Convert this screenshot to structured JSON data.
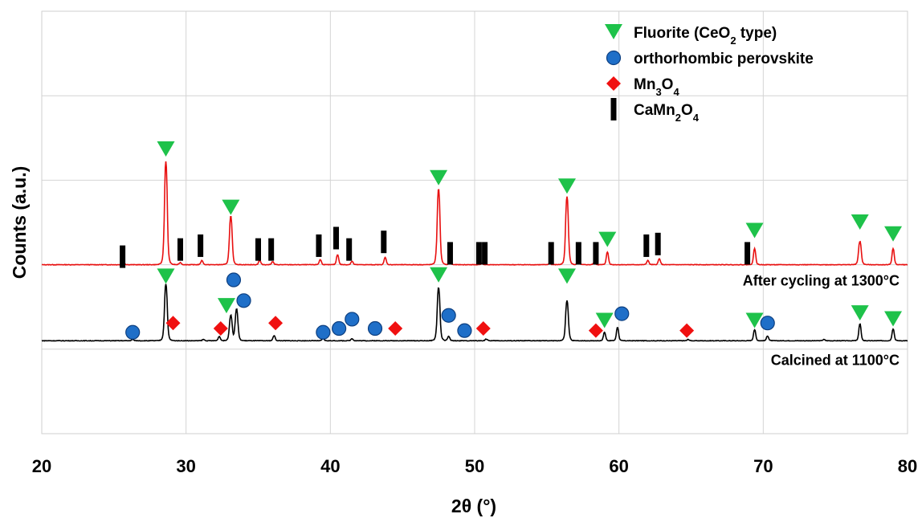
{
  "chart_data": {
    "type": "line",
    "title": "",
    "xlabel": "2θ (°)",
    "ylabel": "Counts (a.u.)",
    "xlim": [
      20,
      80
    ],
    "ylim": [
      0,
      100
    ],
    "xticks": [
      "20",
      "30",
      "40",
      "50",
      "60",
      "70",
      "80"
    ],
    "grid": true,
    "legend_position": "top-right",
    "y_tick_labels_shown": false,
    "series": [
      {
        "name": "After cycling at 1300°C",
        "color": "#e81010",
        "baseline": 40,
        "peaks": [
          {
            "x": 25.7,
            "h": 0.3
          },
          {
            "x": 28.6,
            "h": 24.5
          },
          {
            "x": 29.6,
            "h": 0.5
          },
          {
            "x": 31.1,
            "h": 1.0
          },
          {
            "x": 33.1,
            "h": 11.5
          },
          {
            "x": 35.1,
            "h": 1.0
          },
          {
            "x": 36.0,
            "h": 0.7
          },
          {
            "x": 39.3,
            "h": 1.2
          },
          {
            "x": 40.5,
            "h": 2.4
          },
          {
            "x": 41.5,
            "h": 0.8
          },
          {
            "x": 43.8,
            "h": 1.7
          },
          {
            "x": 47.5,
            "h": 18.0
          },
          {
            "x": 48.3,
            "h": 0.5
          },
          {
            "x": 50.5,
            "h": 0.3
          },
          {
            "x": 55.2,
            "h": 0.3
          },
          {
            "x": 56.4,
            "h": 16.2
          },
          {
            "x": 57.2,
            "h": 0.7
          },
          {
            "x": 58.3,
            "h": 0.5
          },
          {
            "x": 59.2,
            "h": 3.0
          },
          {
            "x": 62.0,
            "h": 1.0
          },
          {
            "x": 62.8,
            "h": 1.4
          },
          {
            "x": 69.4,
            "h": 3.8
          },
          {
            "x": 76.7,
            "h": 5.5
          },
          {
            "x": 79.0,
            "h": 3.8
          }
        ]
      },
      {
        "name": "Calcined at 1100°C",
        "color": "#000000",
        "baseline": 22,
        "peaks": [
          {
            "x": 26.3,
            "h": 0.3
          },
          {
            "x": 28.6,
            "h": 13.5
          },
          {
            "x": 31.2,
            "h": 0.3
          },
          {
            "x": 32.3,
            "h": 1.0
          },
          {
            "x": 33.1,
            "h": 6.0
          },
          {
            "x": 33.5,
            "h": 7.5
          },
          {
            "x": 36.1,
            "h": 1.2
          },
          {
            "x": 39.5,
            "h": 0.5
          },
          {
            "x": 41.5,
            "h": 0.5
          },
          {
            "x": 47.5,
            "h": 12.6
          },
          {
            "x": 48.2,
            "h": 1.0
          },
          {
            "x": 50.8,
            "h": 0.4
          },
          {
            "x": 56.4,
            "h": 9.5
          },
          {
            "x": 59.0,
            "h": 2.0
          },
          {
            "x": 59.9,
            "h": 3.2
          },
          {
            "x": 64.8,
            "h": 0.3
          },
          {
            "x": 69.4,
            "h": 2.6
          },
          {
            "x": 70.3,
            "h": 1.1
          },
          {
            "x": 74.2,
            "h": 0.3
          },
          {
            "x": 76.7,
            "h": 4.0
          },
          {
            "x": 79.0,
            "h": 2.8
          }
        ]
      }
    ],
    "markers": {
      "fluorite": [
        {
          "x": 28.6,
          "y": 67.3
        },
        {
          "x": 33.1,
          "y": 53.5
        },
        {
          "x": 47.5,
          "y": 60.5
        },
        {
          "x": 56.4,
          "y": 58.5
        },
        {
          "x": 59.2,
          "y": 45.9
        },
        {
          "x": 69.4,
          "y": 48.0
        },
        {
          "x": 76.7,
          "y": 50.0
        },
        {
          "x": 79.0,
          "y": 47.2
        },
        {
          "x": 28.6,
          "y": 37.2
        },
        {
          "x": 32.8,
          "y": 30.2
        },
        {
          "x": 47.5,
          "y": 37.5
        },
        {
          "x": 56.4,
          "y": 37.2
        },
        {
          "x": 59.0,
          "y": 26.7
        },
        {
          "x": 69.4,
          "y": 26.7
        },
        {
          "x": 76.7,
          "y": 28.5
        },
        {
          "x": 79.0,
          "y": 27.1
        }
      ],
      "perovskite": [
        {
          "x": 26.3,
          "y": 24.0
        },
        {
          "x": 33.3,
          "y": 36.4
        },
        {
          "x": 34.0,
          "y": 31.5
        },
        {
          "x": 39.5,
          "y": 24.0
        },
        {
          "x": 40.6,
          "y": 24.9
        },
        {
          "x": 41.5,
          "y": 27.1
        },
        {
          "x": 43.1,
          "y": 24.9
        },
        {
          "x": 48.2,
          "y": 28.0
        },
        {
          "x": 49.3,
          "y": 24.4
        },
        {
          "x": 60.2,
          "y": 28.4
        },
        {
          "x": 70.3,
          "y": 26.2
        }
      ],
      "mn3o4": [
        {
          "x": 29.1,
          "y": 26.2
        },
        {
          "x": 32.4,
          "y": 24.9
        },
        {
          "x": 36.2,
          "y": 26.2
        },
        {
          "x": 44.5,
          "y": 24.9
        },
        {
          "x": 50.6,
          "y": 24.9
        },
        {
          "x": 58.4,
          "y": 24.4
        },
        {
          "x": 64.7,
          "y": 24.4
        }
      ],
      "camn2o4": [
        {
          "x": 25.6,
          "y": 41.9
        },
        {
          "x": 29.6,
          "y": 43.6
        },
        {
          "x": 31.0,
          "y": 44.5
        },
        {
          "x": 35.0,
          "y": 43.6
        },
        {
          "x": 35.9,
          "y": 43.6
        },
        {
          "x": 39.2,
          "y": 44.5
        },
        {
          "x": 40.4,
          "y": 46.3
        },
        {
          "x": 41.3,
          "y": 43.6
        },
        {
          "x": 43.7,
          "y": 45.4
        },
        {
          "x": 48.3,
          "y": 42.7
        },
        {
          "x": 50.3,
          "y": 42.7
        },
        {
          "x": 50.7,
          "y": 42.7
        },
        {
          "x": 55.3,
          "y": 42.7
        },
        {
          "x": 57.2,
          "y": 42.7
        },
        {
          "x": 58.4,
          "y": 42.7
        },
        {
          "x": 61.9,
          "y": 44.5
        },
        {
          "x": 62.7,
          "y": 44.9
        },
        {
          "x": 68.9,
          "y": 42.7
        }
      ]
    },
    "annotations": [
      {
        "text": "After cycling at 1300°C",
        "series": 0
      },
      {
        "text": "Calcined at 1100°C",
        "series": 1
      }
    ],
    "legend": [
      {
        "key": "fluorite",
        "label": "Fluorite (CeO",
        "sub": "2",
        "rest": " type)",
        "symbol": "triangle-down",
        "color": "#1ec24a"
      },
      {
        "key": "perovskite",
        "label": "orthorhombic perovskite",
        "sub": "",
        "rest": "",
        "symbol": "circle",
        "color": "#1f6fc8"
      },
      {
        "key": "mn3o4",
        "label": "Mn",
        "sub": "3",
        "rest": "O",
        "sub2": "4",
        "symbol": "diamond",
        "color": "#f01010"
      },
      {
        "key": "camn2o4",
        "label": "CaMn",
        "sub": "2",
        "rest": "O",
        "sub2": "4",
        "symbol": "bar",
        "color": "#000000"
      }
    ]
  }
}
